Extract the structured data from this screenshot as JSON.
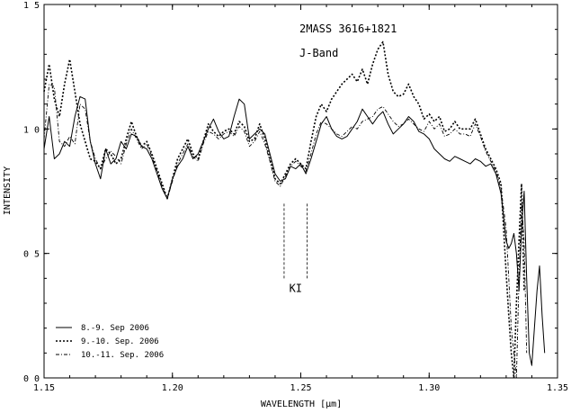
{
  "chart_data": {
    "type": "line",
    "title": "2MASS 3616+1821",
    "subtitle": "J-Band",
    "xlabel": "WAVELENGTH [μm]",
    "ylabel": "INTENSITY",
    "xlim": [
      1.15,
      1.35
    ],
    "ylim": [
      0.0,
      1.5
    ],
    "x_ticks": [
      1.15,
      1.2,
      1.25,
      1.3,
      1.35
    ],
    "x_tick_labels": [
      "1.15",
      "1.20",
      "1.25",
      "1.30",
      "1.35"
    ],
    "y_ticks": [
      0.0,
      0.5,
      1.0,
      1.5
    ],
    "y_tick_labels": [
      "0 0",
      "0 5",
      "1 0",
      "1 5"
    ],
    "grid": false,
    "legend_position": "bottom-left",
    "annotations": [
      {
        "text": "KI",
        "lines_x": [
          1.2435,
          1.2525
        ],
        "y_range": [
          0.4,
          0.7
        ]
      }
    ],
    "series": [
      {
        "name": "8.-9. Sep 2006",
        "style": "solid",
        "x": [
          1.15,
          1.152,
          1.154,
          1.156,
          1.158,
          1.16,
          1.162,
          1.164,
          1.166,
          1.168,
          1.17,
          1.172,
          1.174,
          1.176,
          1.178,
          1.18,
          1.182,
          1.184,
          1.186,
          1.188,
          1.19,
          1.192,
          1.194,
          1.196,
          1.198,
          1.2,
          1.202,
          1.204,
          1.206,
          1.208,
          1.21,
          1.212,
          1.214,
          1.216,
          1.218,
          1.22,
          1.222,
          1.224,
          1.226,
          1.228,
          1.23,
          1.232,
          1.234,
          1.236,
          1.238,
          1.24,
          1.242,
          1.244,
          1.246,
          1.248,
          1.25,
          1.252,
          1.254,
          1.256,
          1.258,
          1.26,
          1.262,
          1.264,
          1.266,
          1.268,
          1.27,
          1.272,
          1.274,
          1.276,
          1.278,
          1.28,
          1.282,
          1.284,
          1.286,
          1.288,
          1.29,
          1.292,
          1.294,
          1.296,
          1.298,
          1.3,
          1.302,
          1.304,
          1.306,
          1.308,
          1.31,
          1.312,
          1.314,
          1.316,
          1.318,
          1.32,
          1.322,
          1.324,
          1.326,
          1.328,
          1.33,
          1.331,
          1.332,
          1.333,
          1.334,
          1.335,
          1.336,
          1.337,
          1.338,
          1.339,
          1.34,
          1.341,
          1.342,
          1.343,
          1.344,
          1.345
        ],
        "y": [
          0.92,
          1.05,
          0.88,
          0.9,
          0.95,
          0.93,
          1.05,
          1.13,
          1.12,
          0.95,
          0.86,
          0.8,
          0.92,
          0.86,
          0.88,
          0.95,
          0.92,
          0.98,
          0.97,
          0.93,
          0.92,
          0.88,
          0.82,
          0.76,
          0.72,
          0.8,
          0.85,
          0.88,
          0.93,
          0.88,
          0.9,
          0.95,
          1.0,
          1.04,
          0.99,
          0.96,
          0.97,
          1.05,
          1.12,
          1.1,
          0.96,
          0.98,
          1.0,
          0.98,
          0.9,
          0.82,
          0.79,
          0.8,
          0.85,
          0.84,
          0.86,
          0.82,
          0.88,
          0.95,
          1.02,
          1.05,
          1.0,
          0.97,
          0.96,
          0.97,
          1.0,
          1.03,
          1.08,
          1.05,
          1.02,
          1.05,
          1.07,
          1.02,
          0.98,
          1.0,
          1.02,
          1.05,
          1.03,
          0.99,
          0.98,
          0.96,
          0.92,
          0.9,
          0.88,
          0.87,
          0.89,
          0.88,
          0.87,
          0.86,
          0.88,
          0.87,
          0.85,
          0.86,
          0.82,
          0.74,
          0.55,
          0.52,
          0.54,
          0.58,
          0.5,
          0.35,
          0.6,
          0.75,
          0.4,
          0.1,
          0.05,
          0.2,
          0.35,
          0.45,
          0.25,
          0.1
        ]
      },
      {
        "name": "9.-10. Sep. 2006",
        "style": "dotted",
        "x": [
          1.15,
          1.152,
          1.154,
          1.156,
          1.158,
          1.16,
          1.162,
          1.164,
          1.166,
          1.168,
          1.17,
          1.172,
          1.174,
          1.176,
          1.178,
          1.18,
          1.182,
          1.184,
          1.186,
          1.188,
          1.19,
          1.192,
          1.194,
          1.196,
          1.198,
          1.2,
          1.202,
          1.204,
          1.206,
          1.208,
          1.21,
          1.212,
          1.214,
          1.216,
          1.218,
          1.22,
          1.222,
          1.224,
          1.226,
          1.228,
          1.23,
          1.232,
          1.234,
          1.236,
          1.238,
          1.24,
          1.242,
          1.244,
          1.246,
          1.248,
          1.25,
          1.252,
          1.254,
          1.256,
          1.258,
          1.26,
          1.262,
          1.264,
          1.266,
          1.268,
          1.27,
          1.272,
          1.274,
          1.276,
          1.278,
          1.28,
          1.282,
          1.284,
          1.286,
          1.288,
          1.29,
          1.292,
          1.294,
          1.296,
          1.298,
          1.3,
          1.302,
          1.304,
          1.306,
          1.308,
          1.31,
          1.312,
          1.314,
          1.316,
          1.318,
          1.32,
          1.322,
          1.324,
          1.326,
          1.328,
          1.33,
          1.331,
          1.332,
          1.333,
          1.334,
          1.335,
          1.336,
          1.337
        ],
        "y": [
          1.15,
          1.26,
          1.12,
          1.05,
          1.18,
          1.28,
          1.15,
          1.02,
          0.95,
          0.88,
          0.87,
          0.84,
          0.92,
          0.9,
          0.86,
          0.88,
          0.96,
          1.03,
          0.97,
          0.93,
          0.95,
          0.9,
          0.84,
          0.78,
          0.72,
          0.8,
          0.88,
          0.92,
          0.96,
          0.9,
          0.88,
          0.95,
          1.02,
          0.99,
          0.97,
          0.99,
          1.0,
          0.98,
          1.03,
          1.01,
          0.95,
          0.96,
          1.02,
          0.96,
          0.88,
          0.8,
          0.78,
          0.82,
          0.86,
          0.88,
          0.86,
          0.84,
          0.95,
          1.05,
          1.1,
          1.07,
          1.12,
          1.15,
          1.18,
          1.2,
          1.22,
          1.19,
          1.24,
          1.18,
          1.26,
          1.32,
          1.35,
          1.22,
          1.15,
          1.13,
          1.14,
          1.18,
          1.13,
          1.1,
          1.04,
          1.06,
          1.03,
          1.05,
          0.99,
          1.0,
          1.03,
          1.0,
          1.0,
          1.0,
          1.04,
          0.98,
          0.92,
          0.88,
          0.84,
          0.78,
          0.42,
          0.25,
          0.1,
          0.0,
          0.3,
          0.55,
          0.78,
          0.35
        ]
      },
      {
        "name": "10.-11. Sep. 2006",
        "style": "dash-dot",
        "x": [
          1.15,
          1.152,
          1.154,
          1.156,
          1.158,
          1.16,
          1.162,
          1.164,
          1.166,
          1.168,
          1.17,
          1.172,
          1.174,
          1.176,
          1.178,
          1.18,
          1.182,
          1.184,
          1.186,
          1.188,
          1.19,
          1.192,
          1.194,
          1.196,
          1.198,
          1.2,
          1.202,
          1.204,
          1.206,
          1.208,
          1.21,
          1.212,
          1.214,
          1.216,
          1.218,
          1.22,
          1.222,
          1.224,
          1.226,
          1.228,
          1.23,
          1.232,
          1.234,
          1.236,
          1.238,
          1.24,
          1.242,
          1.244,
          1.246,
          1.248,
          1.25,
          1.252,
          1.254,
          1.256,
          1.258,
          1.26,
          1.262,
          1.264,
          1.266,
          1.268,
          1.27,
          1.272,
          1.274,
          1.276,
          1.278,
          1.28,
          1.282,
          1.284,
          1.286,
          1.288,
          1.29,
          1.292,
          1.294,
          1.296,
          1.298,
          1.3,
          1.302,
          1.304,
          1.306,
          1.308,
          1.31,
          1.312,
          1.314,
          1.316,
          1.318,
          1.32,
          1.322,
          1.324,
          1.326,
          1.328,
          1.33,
          1.331,
          1.332,
          1.333,
          1.334,
          1.335,
          1.336,
          1.337,
          1.338
        ],
        "y": [
          0.96,
          1.18,
          1.17,
          0.95,
          0.93,
          0.97,
          0.94,
          1.1,
          1.08,
          0.95,
          0.88,
          0.84,
          0.88,
          0.91,
          0.89,
          0.86,
          0.94,
          1.0,
          0.96,
          0.92,
          0.94,
          0.89,
          0.83,
          0.77,
          0.72,
          0.79,
          0.86,
          0.9,
          0.94,
          0.89,
          0.87,
          0.94,
          0.99,
          0.98,
          0.96,
          0.98,
          0.99,
          0.97,
          1.01,
          0.99,
          0.93,
          0.95,
          0.99,
          0.94,
          0.87,
          0.79,
          0.77,
          0.81,
          0.85,
          0.87,
          0.85,
          0.83,
          0.9,
          0.98,
          1.03,
          1.02,
          1.0,
          0.98,
          0.97,
          0.99,
          1.01,
          1.0,
          1.03,
          1.04,
          1.05,
          1.08,
          1.09,
          1.06,
          1.03,
          1.01,
          1.02,
          1.04,
          1.02,
          1.0,
          0.99,
          1.03,
          1.0,
          1.02,
          0.97,
          0.98,
          1.0,
          0.98,
          0.98,
          0.97,
          1.02,
          0.97,
          0.91,
          0.87,
          0.83,
          0.76,
          0.6,
          0.4,
          0.2,
          0.1,
          0.0,
          0.4,
          0.7,
          0.55,
          0.1
        ]
      }
    ]
  }
}
